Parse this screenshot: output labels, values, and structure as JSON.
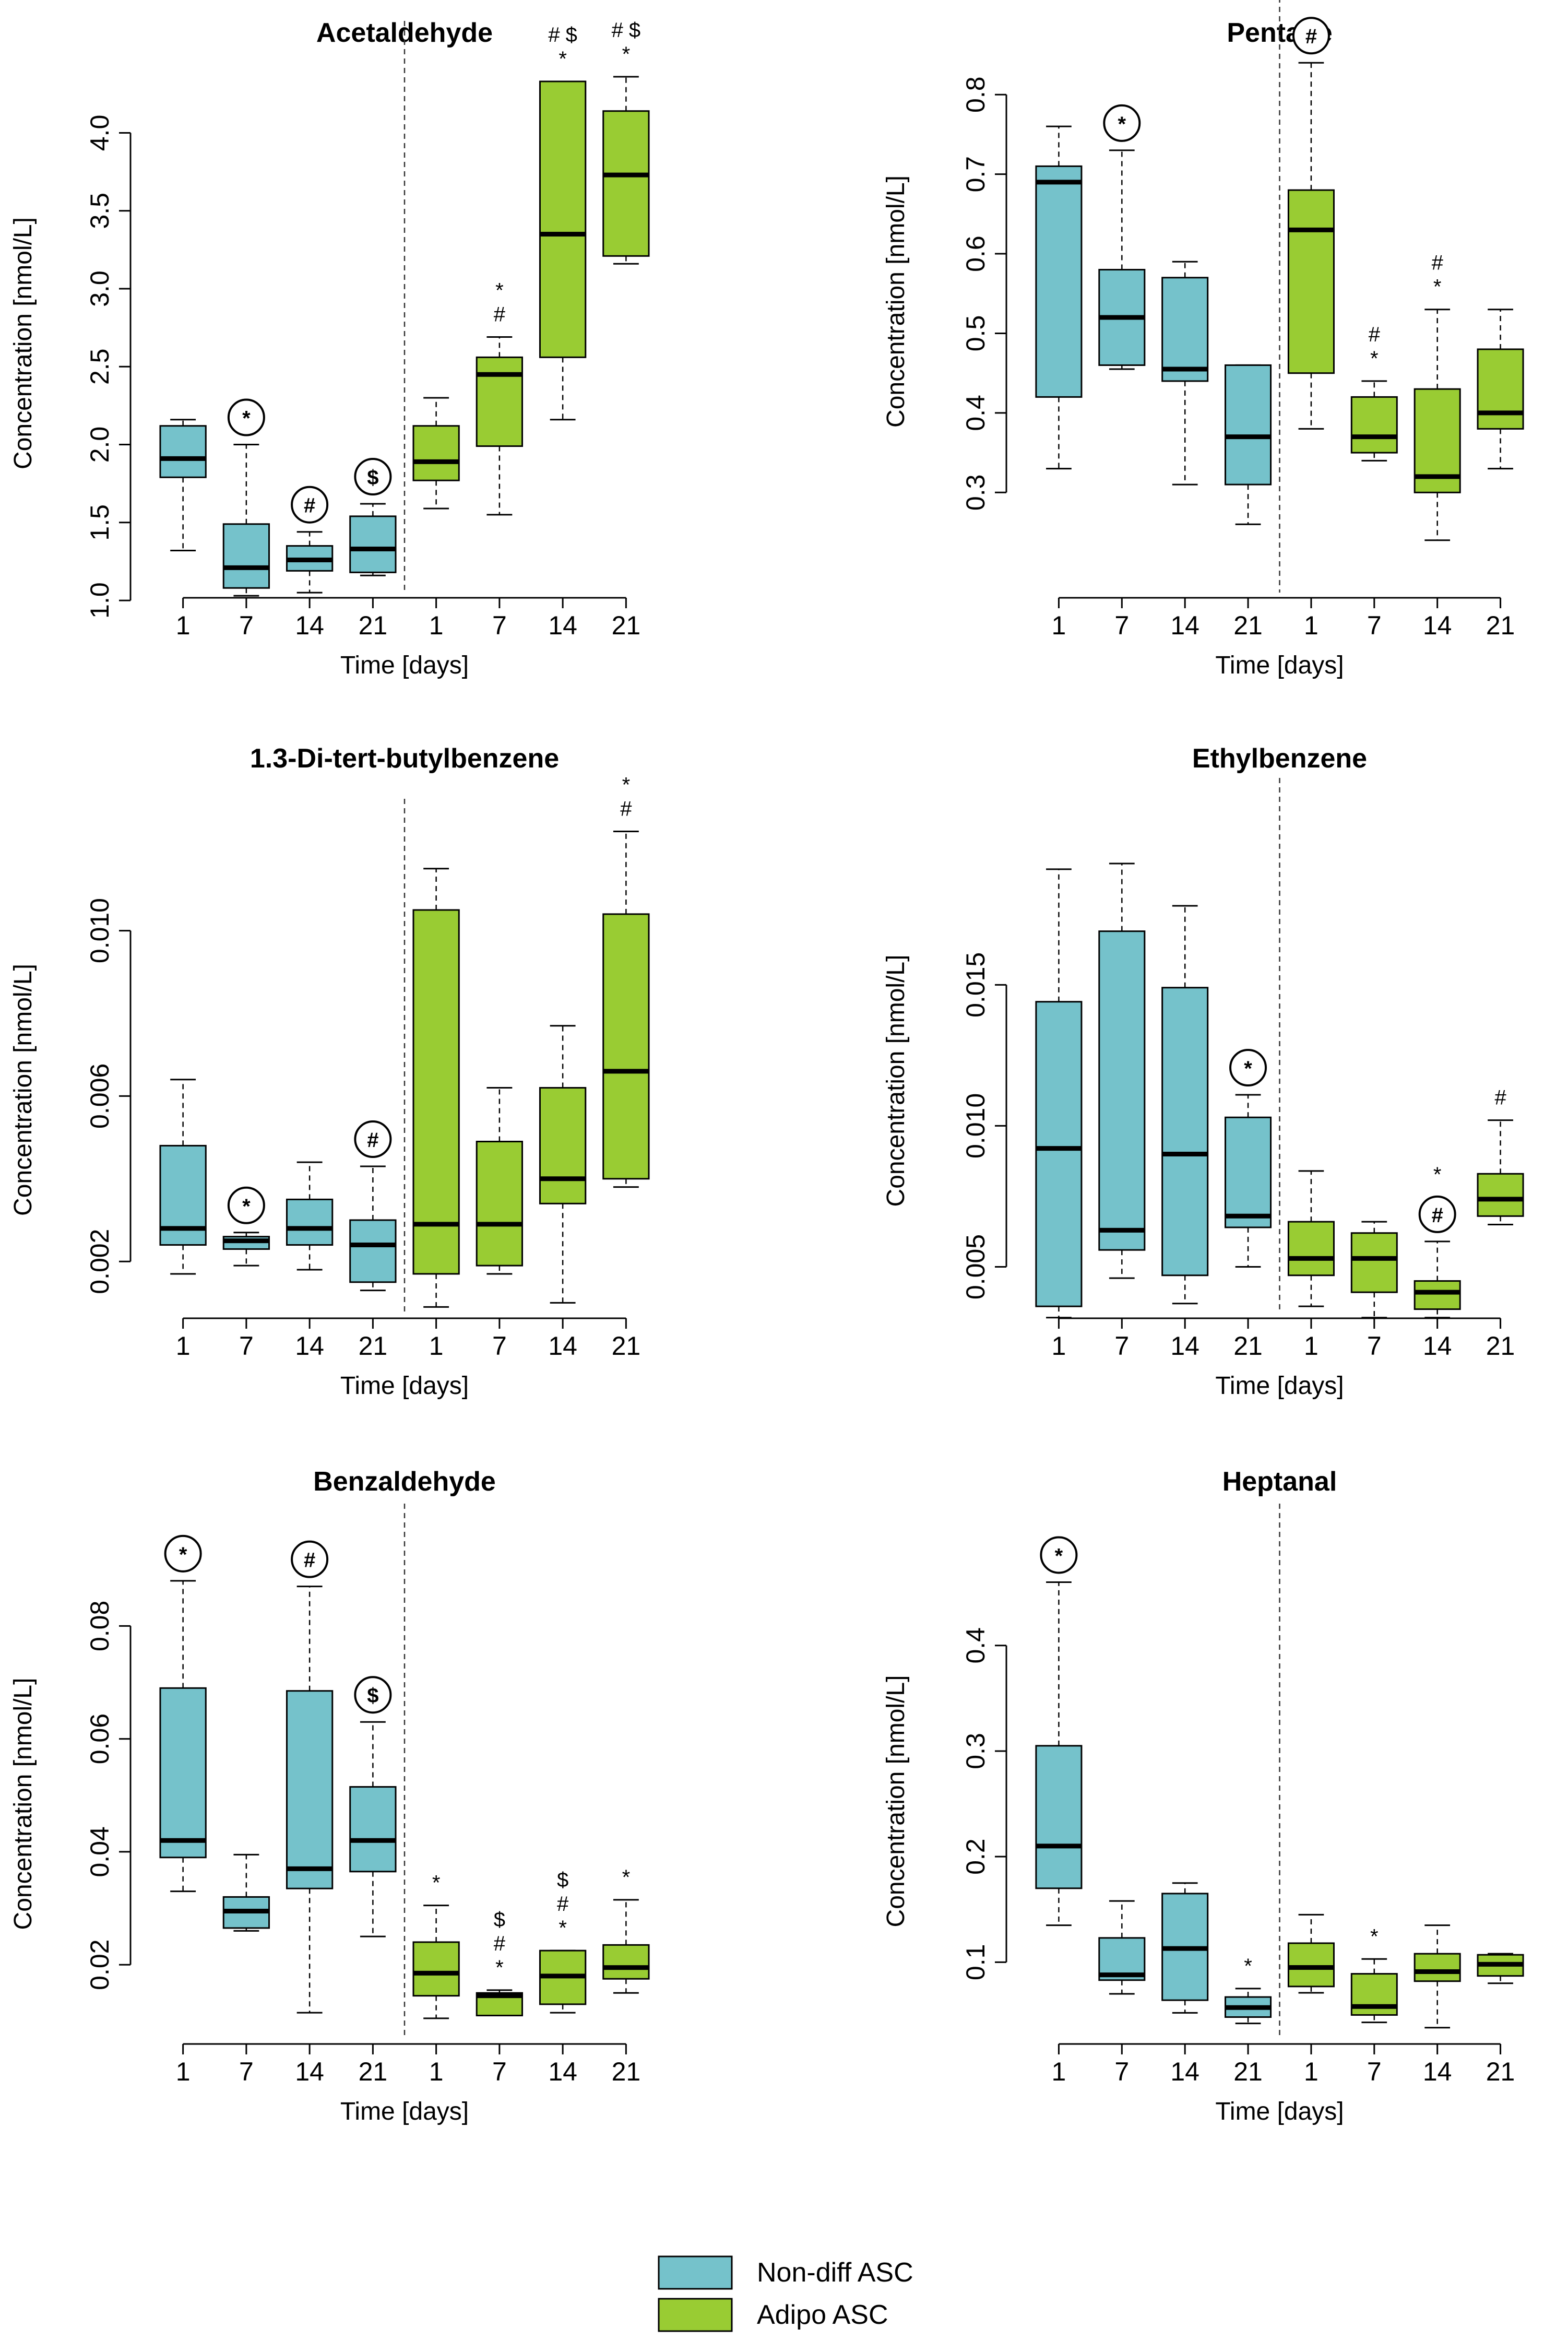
{
  "figure": {
    "colors": {
      "non_diff": "#75C2CB",
      "adipo": "#99CC33",
      "median": "#000000"
    },
    "legend": [
      {
        "label": "Non-diff ASC",
        "color": "#75C2CB"
      },
      {
        "label": "Adipo ASC",
        "color": "#99CC33"
      }
    ]
  },
  "chart_data": [
    {
      "type": "box",
      "title": "Acetaldehyde",
      "xlabel": "Time [days]",
      "ylabel": "Concentration [nmol/L]",
      "categories": [
        "1",
        "7",
        "14",
        "21",
        "1",
        "7",
        "14",
        "21"
      ],
      "groups": [
        "Non-diff ASC",
        "Non-diff ASC",
        "Non-diff ASC",
        "Non-diff ASC",
        "Adipo ASC",
        "Adipo ASC",
        "Adipo ASC",
        "Adipo ASC"
      ],
      "ylim": [
        0.95,
        4.35
      ],
      "yticks": [
        1.0,
        1.5,
        2.0,
        2.5,
        3.0,
        3.5,
        4.0
      ],
      "ytick_labels": [
        "1.0",
        "1.5",
        "2.0",
        "2.5",
        "3.0",
        "3.5",
        "4.0"
      ],
      "boxes": [
        {
          "min": 1.32,
          "q1": 1.79,
          "median": 1.91,
          "q3": 2.12,
          "max": 2.16
        },
        {
          "min": 1.03,
          "q1": 1.08,
          "median": 1.21,
          "q3": 1.49,
          "max": 2.0
        },
        {
          "min": 1.05,
          "q1": 1.19,
          "median": 1.26,
          "q3": 1.35,
          "max": 1.44
        },
        {
          "min": 1.16,
          "q1": 1.18,
          "median": 1.33,
          "q3": 1.54,
          "max": 1.62
        },
        {
          "min": 1.59,
          "q1": 1.77,
          "median": 1.89,
          "q3": 2.12,
          "max": 2.3
        },
        {
          "min": 1.55,
          "q1": 1.99,
          "median": 2.45,
          "q3": 2.56,
          "max": 2.69
        },
        {
          "min": 2.16,
          "q1": 2.56,
          "median": 3.35,
          "q3": 4.33,
          "max": 4.33
        },
        {
          "min": 3.16,
          "q1": 3.21,
          "median": 3.73,
          "q3": 4.14,
          "max": 4.36
        }
      ],
      "annotations": [
        {
          "box": 1,
          "lines": [
            "*"
          ],
          "circled": true
        },
        {
          "box": 2,
          "lines": [
            "#"
          ],
          "circled": true
        },
        {
          "box": 3,
          "lines": [
            "$"
          ],
          "circled": true
        },
        {
          "box": 5,
          "lines": [
            "*",
            "#"
          ],
          "circled": false
        },
        {
          "box": 6,
          "lines": [
            "# $",
            "*"
          ],
          "circled": false
        },
        {
          "box": 7,
          "lines": [
            "# $",
            "*"
          ],
          "circled": false
        }
      ]
    },
    {
      "type": "box",
      "title": "Pentane",
      "xlabel": "Time [days]",
      "ylabel": "Concentration [nmol/L]",
      "categories": [
        "1",
        "7",
        "14",
        "21",
        "1",
        "7",
        "14",
        "21"
      ],
      "groups": [
        "Non-diff ASC",
        "Non-diff ASC",
        "Non-diff ASC",
        "Non-diff ASC",
        "Adipo ASC",
        "Adipo ASC",
        "Adipo ASC",
        "Adipo ASC"
      ],
      "ylim": [
        0.23,
        0.85
      ],
      "yticks": [
        0.3,
        0.4,
        0.5,
        0.6,
        0.7,
        0.8
      ],
      "ytick_labels": [
        "0.3",
        "0.4",
        "0.5",
        "0.6",
        "0.7",
        "0.8"
      ],
      "boxes": [
        {
          "min": 0.33,
          "q1": 0.42,
          "median": 0.69,
          "q3": 0.71,
          "max": 0.76
        },
        {
          "min": 0.455,
          "q1": 0.46,
          "median": 0.52,
          "q3": 0.58,
          "max": 0.73
        },
        {
          "min": 0.31,
          "q1": 0.44,
          "median": 0.455,
          "q3": 0.57,
          "max": 0.59
        },
        {
          "min": 0.26,
          "q1": 0.31,
          "median": 0.37,
          "q3": 0.46,
          "max": 0.46
        },
        {
          "min": 0.38,
          "q1": 0.45,
          "median": 0.63,
          "q3": 0.68,
          "max": 0.84
        },
        {
          "min": 0.34,
          "q1": 0.35,
          "median": 0.37,
          "q3": 0.42,
          "max": 0.44
        },
        {
          "min": 0.24,
          "q1": 0.3,
          "median": 0.32,
          "q3": 0.43,
          "max": 0.53
        },
        {
          "min": 0.33,
          "q1": 0.38,
          "median": 0.4,
          "q3": 0.48,
          "max": 0.53
        }
      ],
      "annotations": [
        {
          "box": 1,
          "lines": [
            "*"
          ],
          "circled": true
        },
        {
          "box": 4,
          "lines": [
            "#"
          ],
          "circled": true
        },
        {
          "box": 5,
          "lines": [
            "#",
            "*"
          ],
          "circled": false
        },
        {
          "box": 6,
          "lines": [
            "#",
            "*"
          ],
          "circled": false
        }
      ]
    },
    {
      "type": "box",
      "title": "1.3-Di-tert-butylbenzene",
      "xlabel": "Time [days]",
      "ylabel": "Concentration [nmol/L]",
      "categories": [
        "1",
        "7",
        "14",
        "21",
        "1",
        "7",
        "14",
        "21"
      ],
      "groups": [
        "Non-diff ASC",
        "Non-diff ASC",
        "Non-diff ASC",
        "Non-diff ASC",
        "Adipo ASC",
        "Adipo ASC",
        "Adipo ASC",
        "Adipo ASC"
      ],
      "ylim": [
        0.0005,
        0.0118
      ],
      "yticks": [
        0.002,
        0.006,
        0.01
      ],
      "ytick_labels": [
        "0.002",
        "0.006",
        "0.010"
      ],
      "boxes": [
        {
          "min": 0.0017,
          "q1": 0.0024,
          "median": 0.0028,
          "q3": 0.0048,
          "max": 0.0064
        },
        {
          "min": 0.0019,
          "q1": 0.0023,
          "median": 0.0025,
          "q3": 0.0026,
          "max": 0.0027
        },
        {
          "min": 0.0018,
          "q1": 0.0024,
          "median": 0.0028,
          "q3": 0.0035,
          "max": 0.0044
        },
        {
          "min": 0.0013,
          "q1": 0.0015,
          "median": 0.0024,
          "q3": 0.003,
          "max": 0.0043
        },
        {
          "min": 0.0009,
          "q1": 0.0017,
          "median": 0.0029,
          "q3": 0.0105,
          "max": 0.0115
        },
        {
          "min": 0.0017,
          "q1": 0.0019,
          "median": 0.0029,
          "q3": 0.0049,
          "max": 0.0062
        },
        {
          "min": 0.001,
          "q1": 0.0034,
          "median": 0.004,
          "q3": 0.0062,
          "max": 0.0077
        },
        {
          "min": 0.0038,
          "q1": 0.004,
          "median": 0.0066,
          "q3": 0.0104,
          "max": 0.0124
        }
      ],
      "annotations": [
        {
          "box": 1,
          "lines": [
            "*"
          ],
          "circled": true
        },
        {
          "box": 3,
          "lines": [
            "#"
          ],
          "circled": true
        },
        {
          "box": 7,
          "lines": [
            "*",
            "#"
          ],
          "circled": false
        }
      ]
    },
    {
      "type": "box",
      "title": "Ethylbenzene",
      "xlabel": "Time [days]",
      "ylabel": "Concentration [nmol/L]",
      "categories": [
        "1",
        "7",
        "14",
        "21",
        "1",
        "7",
        "14",
        "21"
      ],
      "groups": [
        "Non-diff ASC",
        "Non-diff ASC",
        "Non-diff ASC",
        "Non-diff ASC",
        "Adipo ASC",
        "Adipo ASC",
        "Adipo ASC",
        "Adipo ASC"
      ],
      "ylim": [
        0.0029,
        0.0203
      ],
      "yticks": [
        0.005,
        0.01,
        0.015
      ],
      "ytick_labels": [
        "0.005",
        "0.010",
        "0.015"
      ],
      "boxes": [
        {
          "min": 0.0032,
          "q1": 0.0036,
          "median": 0.0092,
          "q3": 0.0144,
          "max": 0.0191
        },
        {
          "min": 0.0046,
          "q1": 0.0056,
          "median": 0.0063,
          "q3": 0.0169,
          "max": 0.0193
        },
        {
          "min": 0.0037,
          "q1": 0.0047,
          "median": 0.009,
          "q3": 0.0149,
          "max": 0.0178
        },
        {
          "min": 0.005,
          "q1": 0.0064,
          "median": 0.0068,
          "q3": 0.0103,
          "max": 0.0111
        },
        {
          "min": 0.0036,
          "q1": 0.0047,
          "median": 0.0053,
          "q3": 0.0066,
          "max": 0.0084
        },
        {
          "min": 0.0032,
          "q1": 0.0041,
          "median": 0.0053,
          "q3": 0.0062,
          "max": 0.0066
        },
        {
          "min": 0.0032,
          "q1": 0.0035,
          "median": 0.0041,
          "q3": 0.0045,
          "max": 0.0059
        },
        {
          "min": 0.0065,
          "q1": 0.0068,
          "median": 0.0074,
          "q3": 0.0083,
          "max": 0.0102
        }
      ],
      "annotations": [
        {
          "box": 3,
          "lines": [
            "*"
          ],
          "circled": true
        },
        {
          "box": 6,
          "lines": [
            "#"
          ],
          "circled": true
        },
        {
          "box": 6,
          "lines": [
            "*"
          ],
          "circled": false
        },
        {
          "box": 7,
          "lines": [
            "#"
          ],
          "circled": false
        }
      ]
    },
    {
      "type": "box",
      "title": "Benzaldehyde",
      "xlabel": "Time [days]",
      "ylabel": "Concentration [nmol/L]",
      "categories": [
        "1",
        "7",
        "14",
        "21",
        "1",
        "7",
        "14",
        "21"
      ],
      "groups": [
        "Non-diff ASC",
        "Non-diff ASC",
        "Non-diff ASC",
        "Non-diff ASC",
        "Adipo ASC",
        "Adipo ASC",
        "Adipo ASC",
        "Adipo ASC"
      ],
      "ylim": [
        0.0055,
        0.0915
      ],
      "yticks": [
        0.02,
        0.04,
        0.06,
        0.08
      ],
      "ytick_labels": [
        "0.02",
        "0.04",
        "0.06",
        "0.08"
      ],
      "boxes": [
        {
          "min": 0.033,
          "q1": 0.039,
          "median": 0.042,
          "q3": 0.069,
          "max": 0.088
        },
        {
          "min": 0.026,
          "q1": 0.0265,
          "median": 0.0295,
          "q3": 0.032,
          "max": 0.0395
        },
        {
          "min": 0.0115,
          "q1": 0.0335,
          "median": 0.037,
          "q3": 0.0685,
          "max": 0.087
        },
        {
          "min": 0.025,
          "q1": 0.0365,
          "median": 0.042,
          "q3": 0.0515,
          "max": 0.063
        },
        {
          "min": 0.0105,
          "q1": 0.0145,
          "median": 0.0185,
          "q3": 0.024,
          "max": 0.0305
        },
        {
          "min": 0.011,
          "q1": 0.011,
          "median": 0.0145,
          "q3": 0.015,
          "max": 0.0155
        },
        {
          "min": 0.0115,
          "q1": 0.013,
          "median": 0.018,
          "q3": 0.0225,
          "max": 0.0225
        },
        {
          "min": 0.015,
          "q1": 0.0175,
          "median": 0.0195,
          "q3": 0.0235,
          "max": 0.0315
        }
      ],
      "annotations": [
        {
          "box": 0,
          "lines": [
            "*"
          ],
          "circled": true
        },
        {
          "box": 2,
          "lines": [
            "#"
          ],
          "circled": true
        },
        {
          "box": 3,
          "lines": [
            "$"
          ],
          "circled": true
        },
        {
          "box": 4,
          "lines": [
            "*"
          ],
          "circled": false
        },
        {
          "box": 5,
          "lines": [
            "$",
            "#",
            "*"
          ],
          "circled": false
        },
        {
          "box": 6,
          "lines": [
            "$",
            "#",
            "*"
          ],
          "circled": false
        },
        {
          "box": 7,
          "lines": [
            "*"
          ],
          "circled": false
        }
      ]
    },
    {
      "type": "box",
      "title": "Heptanal",
      "xlabel": "Time [days]",
      "ylabel": "Concentration [nmol/L]",
      "categories": [
        "1",
        "7",
        "14",
        "21",
        "1",
        "7",
        "14",
        "21"
      ],
      "groups": [
        "Non-diff ASC",
        "Non-diff ASC",
        "Non-diff ASC",
        "Non-diff ASC",
        "Adipo ASC",
        "Adipo ASC",
        "Adipo ASC",
        "Adipo ASC"
      ],
      "ylim": [
        0.025,
        0.48
      ],
      "yticks": [
        0.1,
        0.2,
        0.3,
        0.4
      ],
      "ytick_labels": [
        "0.1",
        "0.2",
        "0.3",
        "0.4"
      ],
      "boxes": [
        {
          "min": 0.135,
          "q1": 0.17,
          "median": 0.21,
          "q3": 0.305,
          "max": 0.46
        },
        {
          "min": 0.07,
          "q1": 0.083,
          "median": 0.088,
          "q3": 0.123,
          "max": 0.158
        },
        {
          "min": 0.052,
          "q1": 0.064,
          "median": 0.113,
          "q3": 0.165,
          "max": 0.175
        },
        {
          "min": 0.042,
          "q1": 0.048,
          "median": 0.057,
          "q3": 0.067,
          "max": 0.075
        },
        {
          "min": 0.071,
          "q1": 0.077,
          "median": 0.095,
          "q3": 0.118,
          "max": 0.145
        },
        {
          "min": 0.043,
          "q1": 0.05,
          "median": 0.058,
          "q3": 0.089,
          "max": 0.103
        },
        {
          "min": 0.038,
          "q1": 0.082,
          "median": 0.091,
          "q3": 0.108,
          "max": 0.135
        },
        {
          "min": 0.08,
          "q1": 0.087,
          "median": 0.098,
          "q3": 0.107,
          "max": 0.108
        }
      ],
      "annotations": [
        {
          "box": 0,
          "lines": [
            "*"
          ],
          "circled": true
        },
        {
          "box": 3,
          "lines": [
            "*"
          ],
          "circled": false
        },
        {
          "box": 5,
          "lines": [
            "*"
          ],
          "circled": false
        }
      ]
    }
  ]
}
